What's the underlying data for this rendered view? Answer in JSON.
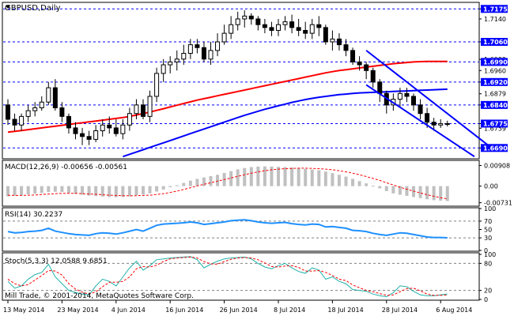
{
  "colors": {
    "background": "#ffffff",
    "frame": "#000000",
    "grid": "#000000",
    "price_level": "#0000ff",
    "ma_slow": "#ff0000",
    "ma_fast": "#0000ff",
    "channel": "#0000ff",
    "macd_histogram": "#c0c0c0",
    "macd_signal": "#ff0000",
    "rsi_line": "#1e90ff",
    "stoch_main": "#20b2aa",
    "stoch_signal": "#ff0000",
    "label_box": "#0000ff",
    "label_text": "#ffffff"
  },
  "chart_data": [
    {
      "panel": "price",
      "type": "candlestick",
      "title": "GBPUSD,Daily",
      "ylim": [
        1.6655,
        1.7195
      ],
      "y_ticks": [
        1.7175,
        1.714,
        1.706,
        1.6999,
        1.696,
        1.692,
        1.6879,
        1.684,
        1.6775,
        1.6759,
        1.669
      ],
      "y_tick_labels": [
        "1.7175",
        "1.7140",
        "1.7060",
        "1.6999",
        "1.6960",
        "1.6920",
        "1.6879",
        "1.6840",
        "1.6775",
        "1.6759",
        "1.6690"
      ],
      "highlighted_levels": [
        1.7175,
        1.706,
        1.699,
        1.692,
        1.684,
        1.6775,
        1.669
      ],
      "highlighted_level_labels": [
        "1.7175",
        "1.7060",
        "1.6990",
        "1.6920",
        "1.6840",
        "1.6775",
        "1.6690"
      ],
      "x": [
        "2014-05-13",
        "2014-05-14",
        "2014-05-15",
        "2014-05-16",
        "2014-05-19",
        "2014-05-20",
        "2014-05-21",
        "2014-05-22",
        "2014-05-23",
        "2014-05-26",
        "2014-05-27",
        "2014-05-28",
        "2014-05-29",
        "2014-05-30",
        "2014-06-02",
        "2014-06-03",
        "2014-06-04",
        "2014-06-05",
        "2014-06-06",
        "2014-06-09",
        "2014-06-10",
        "2014-06-11",
        "2014-06-12",
        "2014-06-13",
        "2014-06-16",
        "2014-06-17",
        "2014-06-18",
        "2014-06-19",
        "2014-06-20",
        "2014-06-23",
        "2014-06-24",
        "2014-06-25",
        "2014-06-26",
        "2014-06-27",
        "2014-06-30",
        "2014-07-01",
        "2014-07-02",
        "2014-07-03",
        "2014-07-04",
        "2014-07-07",
        "2014-07-08",
        "2014-07-09",
        "2014-07-10",
        "2014-07-11",
        "2014-07-14",
        "2014-07-15",
        "2014-07-16",
        "2014-07-17",
        "2014-07-18",
        "2014-07-21",
        "2014-07-22",
        "2014-07-23",
        "2014-07-24",
        "2014-07-25",
        "2014-07-28",
        "2014-07-29",
        "2014-07-30",
        "2014-07-31",
        "2014-08-01",
        "2014-08-04",
        "2014-08-05",
        "2014-08-06",
        "2014-08-07",
        "2014-08-08",
        "2014-08-11",
        "2014-08-12"
      ],
      "x_tick_labels": [
        "13 May 2014",
        "23 May 2014",
        "4 Jun 2014",
        "16 Jun 2014",
        "26 Jun 2014",
        "8 Jul 2014",
        "18 Jul 2014",
        "28 Jul 2014",
        "6 Aug 2014"
      ],
      "x_tick_index": [
        0,
        8,
        16,
        24,
        32,
        40,
        48,
        56,
        64
      ],
      "open": [
        1.684,
        1.679,
        1.677,
        1.68,
        1.682,
        1.683,
        1.685,
        1.69,
        1.683,
        1.68,
        1.676,
        1.674,
        1.673,
        1.672,
        1.675,
        1.677,
        1.676,
        1.674,
        1.677,
        1.681,
        1.684,
        1.68,
        1.687,
        1.695,
        1.698,
        1.699,
        1.7,
        1.702,
        1.705,
        1.704,
        1.7,
        1.703,
        1.706,
        1.709,
        1.712,
        1.714,
        1.715,
        1.714,
        1.712,
        1.711,
        1.71,
        1.712,
        1.713,
        1.711,
        1.71,
        1.709,
        1.712,
        1.711,
        1.706,
        1.707,
        1.705,
        1.703,
        1.699,
        1.698,
        1.696,
        1.692,
        1.688,
        1.684,
        1.686,
        1.688,
        1.687,
        1.684,
        1.681,
        1.678,
        1.677,
        1.6775
      ],
      "high": [
        1.686,
        1.681,
        1.681,
        1.684,
        1.685,
        1.687,
        1.692,
        1.693,
        1.685,
        1.681,
        1.678,
        1.676,
        1.675,
        1.677,
        1.679,
        1.68,
        1.679,
        1.679,
        1.683,
        1.686,
        1.686,
        1.689,
        1.697,
        1.7,
        1.701,
        1.703,
        1.705,
        1.707,
        1.707,
        1.706,
        1.706,
        1.709,
        1.712,
        1.715,
        1.7165,
        1.717,
        1.716,
        1.715,
        1.714,
        1.713,
        1.714,
        1.715,
        1.7155,
        1.714,
        1.713,
        1.714,
        1.715,
        1.712,
        1.71,
        1.709,
        1.707,
        1.704,
        1.701,
        1.699,
        1.697,
        1.693,
        1.689,
        1.688,
        1.69,
        1.69,
        1.688,
        1.686,
        1.683,
        1.6795,
        1.679,
        1.6785
      ],
      "low": [
        1.677,
        1.675,
        1.675,
        1.678,
        1.68,
        1.682,
        1.684,
        1.682,
        1.678,
        1.674,
        1.672,
        1.67,
        1.67,
        1.671,
        1.673,
        1.674,
        1.673,
        1.672,
        1.675,
        1.679,
        1.679,
        1.678,
        1.685,
        1.692,
        1.695,
        1.696,
        1.698,
        1.7,
        1.702,
        1.699,
        1.698,
        1.701,
        1.705,
        1.707,
        1.71,
        1.711,
        1.712,
        1.71,
        1.709,
        1.708,
        1.708,
        1.71,
        1.709,
        1.708,
        1.707,
        1.707,
        1.708,
        1.705,
        1.703,
        1.703,
        1.701,
        1.698,
        1.696,
        1.693,
        1.69,
        1.685,
        1.681,
        1.682,
        1.683,
        1.685,
        1.682,
        1.679,
        1.676,
        1.675,
        1.676,
        1.6765
      ],
      "close": [
        1.679,
        1.677,
        1.68,
        1.682,
        1.683,
        1.685,
        1.69,
        1.683,
        1.68,
        1.676,
        1.674,
        1.673,
        1.672,
        1.675,
        1.677,
        1.676,
        1.674,
        1.677,
        1.681,
        1.684,
        1.68,
        1.687,
        1.695,
        1.698,
        1.699,
        1.7,
        1.702,
        1.705,
        1.704,
        1.7,
        1.703,
        1.706,
        1.709,
        1.712,
        1.714,
        1.715,
        1.714,
        1.712,
        1.711,
        1.71,
        1.712,
        1.713,
        1.711,
        1.71,
        1.709,
        1.712,
        1.711,
        1.706,
        1.707,
        1.705,
        1.703,
        1.699,
        1.698,
        1.696,
        1.692,
        1.688,
        1.684,
        1.686,
        1.688,
        1.687,
        1.684,
        1.681,
        1.678,
        1.677,
        1.6775,
        1.6772
      ],
      "ma_slow": [
        1.6745,
        1.6748,
        1.6751,
        1.6754,
        1.6757,
        1.676,
        1.6763,
        1.6766,
        1.6769,
        1.6772,
        1.6775,
        1.6778,
        1.6781,
        1.6784,
        1.6787,
        1.679,
        1.6793,
        1.6796,
        1.68,
        1.6805,
        1.681,
        1.6815,
        1.6821,
        1.6827,
        1.6833,
        1.6839,
        1.6845,
        1.6851,
        1.6857,
        1.6862,
        1.6867,
        1.6872,
        1.6877,
        1.6882,
        1.6887,
        1.6892,
        1.6897,
        1.6902,
        1.6907,
        1.6912,
        1.6917,
        1.6922,
        1.6927,
        1.6932,
        1.6937,
        1.6942,
        1.6947,
        1.6952,
        1.6956,
        1.696,
        1.6963,
        1.6966,
        1.6969,
        1.6972,
        1.6975,
        1.6978,
        1.6981,
        1.6984,
        1.6986,
        1.6988,
        1.699,
        1.6991,
        1.6992,
        1.6992,
        1.6992,
        1.6992
      ],
      "ma_fast": [
        null,
        null,
        null,
        null,
        null,
        null,
        null,
        null,
        null,
        null,
        null,
        null,
        null,
        null,
        null,
        null,
        null,
        1.666,
        1.6668,
        1.6676,
        1.6684,
        1.6692,
        1.67,
        1.6708,
        1.6716,
        1.6724,
        1.6732,
        1.674,
        1.6748,
        1.6756,
        1.6764,
        1.6772,
        1.678,
        1.6788,
        1.6796,
        1.6804,
        1.6811,
        1.6818,
        1.6825,
        1.6831,
        1.6837,
        1.6843,
        1.6849,
        1.6854,
        1.6859,
        1.6863,
        1.6867,
        1.687,
        1.6873,
        1.6876,
        1.6878,
        1.688,
        1.6882,
        1.6883,
        1.6884,
        1.6885,
        1.6886,
        1.6887,
        1.6888,
        1.6889,
        1.689,
        1.6891,
        1.6892,
        1.6893,
        1.6894,
        1.6895
      ],
      "channel_lines": [
        {
          "from": [
            53,
            1.703
          ],
          "to": [
            71,
            1.67
          ]
        },
        {
          "from": [
            53,
            1.691
          ],
          "to": [
            69,
            1.666
          ]
        }
      ]
    },
    {
      "panel": "macd",
      "type": "bar",
      "title": "MACD(12,26,9) -0.00656 -0.00561",
      "ylim": [
        -0.0085,
        0.011
      ],
      "y_ticks": [
        0.00908,
        0.0,
        -0.00731
      ],
      "y_tick_labels": [
        "0.00908",
        "0.00",
        "-0.00731"
      ],
      "values": [
        -0.0045,
        -0.0042,
        -0.004,
        -0.0036,
        -0.0033,
        -0.003,
        -0.0026,
        -0.0025,
        -0.0026,
        -0.003,
        -0.0034,
        -0.0038,
        -0.0042,
        -0.0044,
        -0.0046,
        -0.0048,
        -0.0049,
        -0.0048,
        -0.0045,
        -0.004,
        -0.0037,
        -0.0032,
        -0.0024,
        -0.0015,
        -0.0005,
        0.0004,
        0.0014,
        0.0024,
        0.0032,
        0.0038,
        0.0044,
        0.005,
        0.0058,
        0.0066,
        0.0074,
        0.008,
        0.0084,
        0.0086,
        0.0087,
        0.0086,
        0.0085,
        0.0084,
        0.0082,
        0.0079,
        0.0076,
        0.0073,
        0.007,
        0.0064,
        0.0057,
        0.005,
        0.0042,
        0.0032,
        0.0022,
        0.0012,
        0.0002,
        -0.001,
        -0.0022,
        -0.0032,
        -0.0038,
        -0.0043,
        -0.0048,
        -0.0053,
        -0.0058,
        -0.0062,
        -0.0064,
        -0.00656
      ],
      "signal": [
        -0.004,
        -0.0041,
        -0.0041,
        -0.004,
        -0.0039,
        -0.0037,
        -0.0035,
        -0.0033,
        -0.0032,
        -0.0032,
        -0.0032,
        -0.0033,
        -0.0035,
        -0.0036,
        -0.0038,
        -0.004,
        -0.0041,
        -0.0042,
        -0.0043,
        -0.0042,
        -0.0041,
        -0.004,
        -0.0037,
        -0.0033,
        -0.0028,
        -0.0022,
        -0.0015,
        -0.0007,
        0.0001,
        0.0008,
        0.0015,
        0.0022,
        0.0029,
        0.0036,
        0.0043,
        0.005,
        0.0057,
        0.0063,
        0.0068,
        0.0072,
        0.0075,
        0.0077,
        0.0078,
        0.0079,
        0.0079,
        0.0078,
        0.0077,
        0.0075,
        0.0072,
        0.0068,
        0.0063,
        0.0057,
        0.005,
        0.0042,
        0.0034,
        0.0025,
        0.0015,
        0.0005,
        -0.0005,
        -0.0014,
        -0.0022,
        -0.003,
        -0.0038,
        -0.0045,
        -0.0051,
        -0.00561
      ]
    },
    {
      "panel": "rsi",
      "type": "line",
      "title": "RSI(14) 30.2237",
      "ylim": [
        0,
        100
      ],
      "y_ticks": [
        100,
        70,
        50,
        30,
        0
      ],
      "y_tick_labels": [
        "100",
        "70",
        "50",
        "30",
        "0"
      ],
      "levels": [
        70,
        30
      ],
      "values": [
        45,
        42,
        43,
        45,
        46,
        48,
        53,
        46,
        43,
        40,
        38,
        37,
        36,
        40,
        42,
        41,
        39,
        42,
        46,
        50,
        46,
        53,
        60,
        63,
        64,
        65,
        66,
        68,
        66,
        62,
        64,
        66,
        68,
        71,
        72,
        73,
        71,
        68,
        66,
        65,
        66,
        67,
        64,
        62,
        61,
        63,
        62,
        56,
        57,
        55,
        53,
        48,
        47,
        45,
        41,
        38,
        36,
        39,
        42,
        41,
        38,
        35,
        32,
        31,
        31,
        30.2237
      ]
    },
    {
      "panel": "stoch",
      "type": "line",
      "title": "Stoch(5,3,3) 12.0588 9.6851",
      "ylim": [
        0,
        100
      ],
      "y_ticks": [
        100,
        80,
        20,
        0
      ],
      "y_tick_labels": [
        "100",
        "80",
        "20",
        "0"
      ],
      "levels": [
        80,
        20
      ],
      "main": [
        40,
        25,
        30,
        45,
        55,
        60,
        78,
        50,
        35,
        20,
        15,
        12,
        10,
        30,
        45,
        40,
        30,
        50,
        70,
        85,
        65,
        75,
        88,
        90,
        92,
        93,
        94,
        95,
        88,
        70,
        78,
        85,
        90,
        92,
        93,
        94,
        90,
        80,
        72,
        68,
        75,
        80,
        70,
        62,
        58,
        70,
        65,
        45,
        50,
        40,
        35,
        22,
        20,
        18,
        12,
        8,
        6,
        15,
        30,
        28,
        18,
        10,
        8,
        8,
        10,
        12.0588
      ],
      "signal": [
        45,
        35,
        30,
        33,
        43,
        53,
        64,
        63,
        54,
        35,
        23,
        16,
        12,
        17,
        28,
        38,
        38,
        40,
        50,
        68,
        73,
        72,
        76,
        84,
        90,
        92,
        93,
        94,
        92,
        84,
        79,
        78,
        84,
        89,
        92,
        93,
        92,
        88,
        81,
        73,
        72,
        74,
        75,
        71,
        63,
        63,
        64,
        60,
        53,
        45,
        42,
        32,
        26,
        20,
        17,
        13,
        9,
        10,
        17,
        24,
        25,
        19,
        12,
        9,
        9,
        9.6851
      ]
    }
  ],
  "footer": {
    "copyright": "Mill Trade, © 2001-2014, MetaQuotes Software Corp."
  }
}
